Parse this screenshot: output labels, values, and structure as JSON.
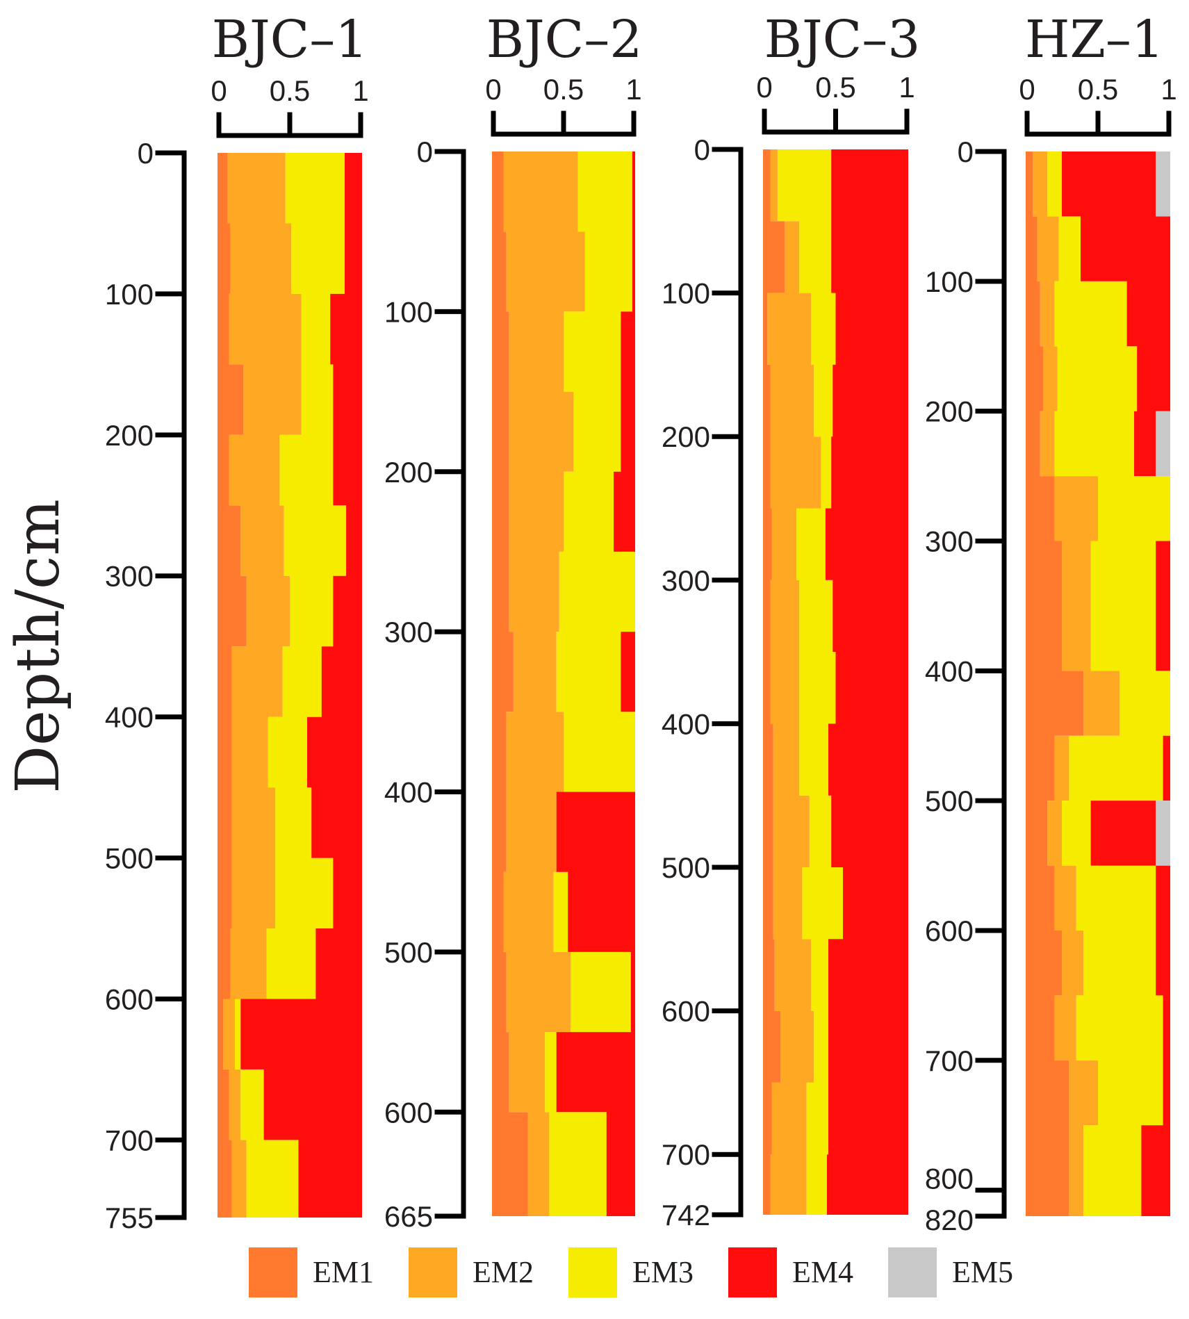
{
  "chart_data": {
    "type": "area",
    "ylabel": "Depth/cm",
    "colors": {
      "EM1": "#FF7A2E",
      "EM2": "#FFA824",
      "EM3": "#F6EC00",
      "EM4": "#FF0D0D",
      "EM5": "#C8C8C8"
    },
    "legend": {
      "placement": "bottom",
      "entries": [
        "EM1",
        "EM2",
        "EM3",
        "EM4",
        "EM5"
      ]
    },
    "x_ticks": [
      "0",
      "0.5",
      "1"
    ],
    "xlim": [
      0,
      1
    ],
    "cores": [
      {
        "title": "BJC–1",
        "depth_max": 755,
        "y_ticks": [
          "0",
          "100",
          "200",
          "300",
          "400",
          "500",
          "600",
          "700",
          "755"
        ],
        "y_tick_values": [
          0,
          100,
          200,
          300,
          400,
          500,
          600,
          700,
          755
        ],
        "depth": [
          0,
          50,
          100,
          150,
          200,
          250,
          300,
          350,
          400,
          450,
          500,
          550,
          600,
          650,
          700,
          755
        ],
        "series": [
          {
            "name": "EM1",
            "values": [
              0.07,
              0.09,
              0.08,
              0.18,
              0.08,
              0.16,
              0.2,
              0.1,
              0.1,
              0.1,
              0.1,
              0.09,
              0.04,
              0.08,
              0.1,
              0.12
            ]
          },
          {
            "name": "EM2",
            "values": [
              0.4,
              0.42,
              0.5,
              0.4,
              0.35,
              0.3,
              0.3,
              0.35,
              0.25,
              0.3,
              0.3,
              0.25,
              0.08,
              0.08,
              0.1,
              0.1
            ]
          },
          {
            "name": "EM3",
            "values": [
              0.41,
              0.37,
              0.2,
              0.22,
              0.37,
              0.43,
              0.3,
              0.27,
              0.27,
              0.25,
              0.4,
              0.34,
              0.04,
              0.16,
              0.36,
              0.12
            ]
          },
          {
            "name": "EM4",
            "values": [
              0.12,
              0.12,
              0.22,
              0.2,
              0.2,
              0.11,
              0.2,
              0.28,
              0.38,
              0.35,
              0.2,
              0.32,
              0.84,
              0.68,
              0.44,
              0.66
            ]
          },
          {
            "name": "EM5",
            "values": [
              0,
              0,
              0,
              0,
              0,
              0,
              0,
              0,
              0,
              0,
              0,
              0,
              0,
              0,
              0,
              0
            ]
          }
        ]
      },
      {
        "title": "BJC–2",
        "depth_max": 665,
        "y_ticks": [
          "0",
          "100",
          "200",
          "300",
          "400",
          "500",
          "600",
          "665"
        ],
        "y_tick_values": [
          0,
          100,
          200,
          300,
          400,
          500,
          600,
          665
        ],
        "depth": [
          0,
          50,
          100,
          150,
          200,
          250,
          300,
          350,
          400,
          450,
          500,
          550,
          600,
          665
        ],
        "series": [
          {
            "name": "EM1",
            "values": [
              0.08,
              0.1,
              0.12,
              0.12,
              0.12,
              0.12,
              0.15,
              0.1,
              0.1,
              0.08,
              0.1,
              0.12,
              0.25,
              0.45
            ]
          },
          {
            "name": "EM2",
            "values": [
              0.52,
              0.55,
              0.38,
              0.45,
              0.38,
              0.35,
              0.3,
              0.4,
              0.35,
              0.35,
              0.45,
              0.25,
              0.15,
              0.05
            ]
          },
          {
            "name": "EM3",
            "values": [
              0.38,
              0.33,
              0.4,
              0.33,
              0.35,
              0.53,
              0.45,
              0.5,
              0.0,
              0.1,
              0.42,
              0.08,
              0.4,
              0.3
            ]
          },
          {
            "name": "EM4",
            "values": [
              0.02,
              0.02,
              0.1,
              0.1,
              0.15,
              0.0,
              0.1,
              0.0,
              0.55,
              0.47,
              0.03,
              0.55,
              0.2,
              0.2
            ]
          },
          {
            "name": "EM5",
            "values": [
              0,
              0,
              0,
              0,
              0,
              0,
              0,
              0,
              0,
              0,
              0,
              0,
              0,
              0
            ]
          }
        ]
      },
      {
        "title": "BJC–3",
        "depth_max": 742,
        "y_ticks": [
          "0",
          "100",
          "200",
          "300",
          "400",
          "500",
          "600",
          "700",
          "742"
        ],
        "y_tick_values": [
          0,
          100,
          200,
          300,
          400,
          500,
          600,
          700,
          742
        ],
        "depth": [
          0,
          50,
          100,
          150,
          200,
          250,
          300,
          350,
          400,
          450,
          500,
          550,
          600,
          650,
          700,
          742
        ],
        "series": [
          {
            "name": "EM1",
            "values": [
              0.05,
              0.15,
              0.03,
              0.05,
              0.05,
              0.06,
              0.05,
              0.05,
              0.07,
              0.07,
              0.07,
              0.08,
              0.12,
              0.06,
              0.05,
              0.02
            ]
          },
          {
            "name": "EM2",
            "values": [
              0.05,
              0.1,
              0.3,
              0.3,
              0.35,
              0.17,
              0.2,
              0.2,
              0.18,
              0.25,
              0.2,
              0.25,
              0.23,
              0.24,
              0.25,
              0.25
            ]
          },
          {
            "name": "EM3",
            "values": [
              0.37,
              0.22,
              0.17,
              0.13,
              0.07,
              0.2,
              0.23,
              0.25,
              0.2,
              0.15,
              0.28,
              0.12,
              0.1,
              0.15,
              0.14,
              0.2
            ]
          },
          {
            "name": "EM4",
            "values": [
              0.53,
              0.53,
              0.5,
              0.52,
              0.53,
              0.57,
              0.52,
              0.5,
              0.55,
              0.53,
              0.45,
              0.55,
              0.55,
              0.55,
              0.56,
              0.53
            ]
          },
          {
            "name": "EM5",
            "values": [
              0,
              0,
              0,
              0,
              0,
              0,
              0,
              0,
              0,
              0,
              0,
              0,
              0,
              0,
              0,
              0
            ]
          }
        ]
      },
      {
        "title": "HZ–1",
        "depth_max": 820,
        "y_ticks": [
          "0",
          "100",
          "200",
          "300",
          "400",
          "500",
          "600",
          "700",
          "800",
          "820"
        ],
        "y_tick_values": [
          0,
          100,
          200,
          300,
          400,
          500,
          600,
          700,
          800,
          820
        ],
        "depth": [
          0,
          50,
          100,
          150,
          200,
          250,
          300,
          350,
          400,
          450,
          500,
          550,
          600,
          650,
          700,
          750,
          820
        ],
        "series": [
          {
            "name": "EM1",
            "values": [
              0.05,
              0.08,
              0.1,
              0.12,
              0.1,
              0.2,
              0.25,
              0.25,
              0.4,
              0.2,
              0.15,
              0.2,
              0.25,
              0.2,
              0.3,
              0.3,
              0.2
            ]
          },
          {
            "name": "EM2",
            "values": [
              0.1,
              0.15,
              0.1,
              0.1,
              0.1,
              0.3,
              0.2,
              0.2,
              0.25,
              0.1,
              0.1,
              0.15,
              0.15,
              0.15,
              0.2,
              0.1,
              0.15
            ]
          },
          {
            "name": "EM3",
            "values": [
              0.1,
              0.15,
              0.5,
              0.55,
              0.55,
              0.5,
              0.45,
              0.45,
              0.35,
              0.65,
              0.2,
              0.55,
              0.5,
              0.6,
              0.45,
              0.4,
              0.5
            ]
          },
          {
            "name": "EM4",
            "values": [
              0.65,
              0.62,
              0.3,
              0.23,
              0.15,
              0.0,
              0.1,
              0.1,
              0.0,
              0.05,
              0.45,
              0.1,
              0.1,
              0.05,
              0.05,
              0.2,
              0.15
            ]
          },
          {
            "name": "EM5",
            "values": [
              0.1,
              0.0,
              0.0,
              0.0,
              0.1,
              0.0,
              0.0,
              0.0,
              0.0,
              0.0,
              0.1,
              0.0,
              0.0,
              0.0,
              0.0,
              0.0,
              0.0
            ]
          }
        ]
      }
    ]
  }
}
